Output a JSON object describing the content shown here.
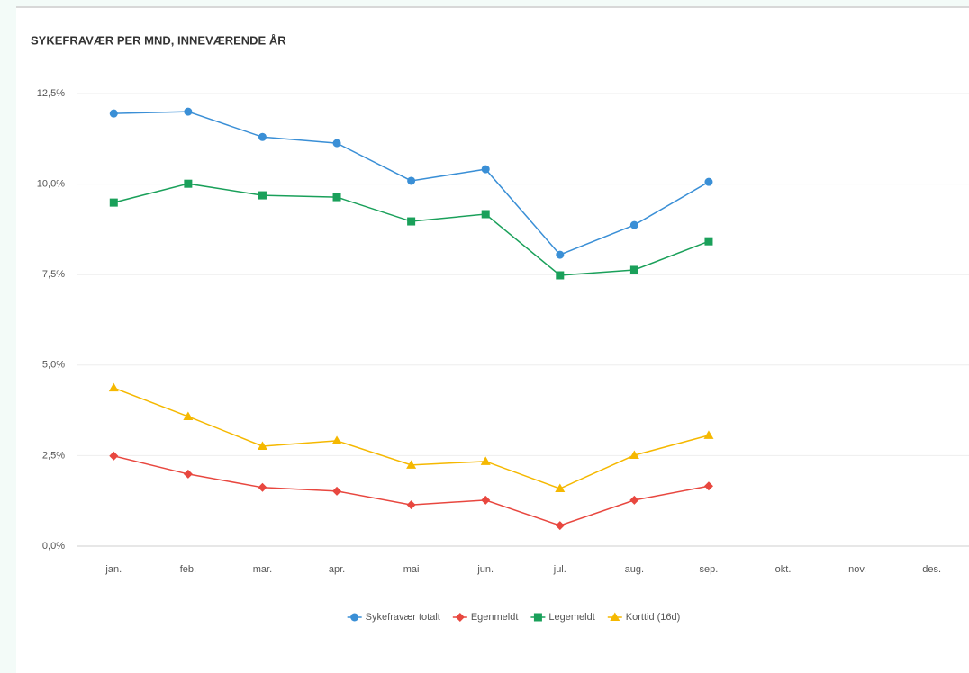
{
  "chart_data": {
    "type": "line",
    "title": "SYKEFRAVÆR PER MND, INNEVÆRENDE ÅR",
    "categories": [
      "jan.",
      "feb.",
      "mar.",
      "apr.",
      "mai",
      "jun.",
      "jul.",
      "aug.",
      "sep.",
      "okt.",
      "nov.",
      "des."
    ],
    "series": [
      {
        "name": "Sykefravær totalt",
        "color": "#3a8fd6",
        "marker": "circle",
        "values": [
          11.95,
          12.0,
          11.3,
          11.13,
          10.09,
          10.41,
          8.05,
          8.87,
          10.06,
          null,
          null,
          null
        ]
      },
      {
        "name": "Egenmeldt",
        "color": "#e8473f",
        "marker": "diamond",
        "values": [
          2.49,
          1.99,
          1.62,
          1.52,
          1.14,
          1.27,
          0.57,
          1.27,
          1.66,
          null,
          null,
          null
        ]
      },
      {
        "name": "Legemeldt",
        "color": "#1aa05a",
        "marker": "square",
        "values": [
          9.49,
          10.01,
          9.69,
          9.64,
          8.97,
          9.17,
          7.48,
          7.63,
          8.42,
          null,
          null,
          null
        ]
      },
      {
        "name": "Korttid (16d)",
        "color": "#f5b800",
        "marker": "triangle",
        "values": [
          4.37,
          3.58,
          2.76,
          2.91,
          2.24,
          2.34,
          1.59,
          2.51,
          3.06,
          null,
          null,
          null
        ]
      }
    ],
    "ylim": [
      0,
      12.5
    ],
    "yticks": [
      {
        "value": 0,
        "label": "0,0%"
      },
      {
        "value": 2.5,
        "label": "2,5%"
      },
      {
        "value": 5,
        "label": "5,0%"
      },
      {
        "value": 7.5,
        "label": "7,5%"
      },
      {
        "value": 10,
        "label": "10,0%"
      },
      {
        "value": 12.5,
        "label": "12,5%"
      }
    ],
    "grid": true,
    "legend": "bottom"
  }
}
